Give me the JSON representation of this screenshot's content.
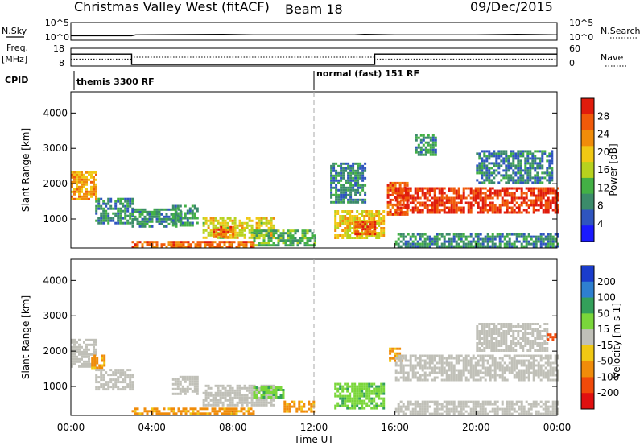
{
  "header": {
    "station": "Christmas Valley West (fitACF)",
    "beam": "Beam 18",
    "date": "09/Dec/2015"
  },
  "noise_panel": {
    "left_label": "N.Sky",
    "right_label": "N.Search",
    "left_ticks": [
      "10^5",
      "10^0"
    ],
    "right_ticks": [
      "10^5",
      "10^0"
    ]
  },
  "freq_panel": {
    "left_label_1": "Freq.",
    "left_label_2": "[MHz]",
    "right_label": "Nave",
    "left_ticks": [
      "18",
      "8"
    ],
    "right_ticks": [
      "60",
      "0"
    ]
  },
  "cpid": {
    "label": "CPID",
    "modes": [
      {
        "name": "themis 3300 RF",
        "start_hour": 0
      },
      {
        "name": "normal (fast) 151 RF",
        "start_hour": 12
      }
    ]
  },
  "time_axis": {
    "title": "Time UT",
    "ticks": [
      "00:00",
      "04:00",
      "08:00",
      "12:00",
      "16:00",
      "20:00",
      "00:00"
    ]
  },
  "colors": {
    "power_scale": [
      "#1a1aff",
      "#2f55bf",
      "#3b8b6a",
      "#43b045",
      "#b7d21e",
      "#f0c814",
      "#f08c0a",
      "#f05a0a",
      "#e01c0c"
    ],
    "velocity_scale": [
      "#1a3ccc",
      "#2e7fd0",
      "#33a05a",
      "#7ad63a",
      "#c0c0b8",
      "#f0c814",
      "#f08c0a",
      "#f04a0a",
      "#e01010"
    ]
  },
  "chart_data": [
    {
      "type": "line",
      "title": "N.Sky / N.Search noise",
      "x_unit": "hours UT",
      "xlim": [
        0,
        24
      ],
      "series": [
        {
          "name": "N.Sky",
          "x": [
            0,
            3,
            3.2,
            7.5,
            9,
            12,
            14,
            14.5,
            16,
            20,
            22,
            24
          ],
          "y": [
            1,
            1,
            2,
            3,
            2,
            2,
            2,
            3,
            2,
            2,
            3,
            2
          ]
        }
      ]
    },
    {
      "type": "line",
      "title": "Freq. [MHz] / Nave",
      "x_unit": "hours UT",
      "xlim": [
        0,
        24
      ],
      "series": [
        {
          "name": "Freq.",
          "x": [
            0,
            3,
            3,
            15,
            15,
            24
          ],
          "y": [
            16,
            16,
            8,
            8,
            16,
            16
          ]
        },
        {
          "name": "Nave",
          "x": [
            0,
            3,
            3,
            15,
            15,
            24
          ],
          "y": [
            22,
            22,
            30,
            30,
            22,
            22
          ]
        }
      ]
    },
    {
      "type": "heatmap",
      "title": "Power [dB]",
      "xlabel": "Time UT",
      "ylabel": "Slant Range [km]",
      "xlim": [
        0,
        24
      ],
      "ylim": [
        180,
        4600
      ],
      "y_ticks": [
        1000,
        2000,
        3000,
        4000
      ],
      "colorbar_label": "Power [dB]",
      "colorbar_ticks": [
        4,
        8,
        12,
        16,
        20,
        24,
        28
      ],
      "colorbar_range": [
        0,
        32
      ],
      "regions": [
        {
          "t": [
            0.0,
            1.2
          ],
          "r": [
            1550,
            2350
          ],
          "value": 22
        },
        {
          "t": [
            1.2,
            3.0
          ],
          "r": [
            900,
            1600
          ],
          "value": 9
        },
        {
          "t": [
            3.0,
            5.5
          ],
          "r": [
            800,
            1300
          ],
          "value": 9
        },
        {
          "t": [
            3.0,
            9.0
          ],
          "r": [
            200,
            380
          ],
          "value": 26
        },
        {
          "t": [
            5.0,
            6.2
          ],
          "r": [
            800,
            1400
          ],
          "value": 10
        },
        {
          "t": [
            6.5,
            10.0
          ],
          "r": [
            500,
            1050
          ],
          "value": 18
        },
        {
          "t": [
            7.0,
            8.0
          ],
          "r": [
            500,
            800
          ],
          "value": 26
        },
        {
          "t": [
            9.0,
            12.0
          ],
          "r": [
            250,
            700
          ],
          "value": 12
        },
        {
          "t": [
            13.0,
            15.5
          ],
          "r": [
            450,
            1250
          ],
          "value": 19
        },
        {
          "t": [
            14.0,
            15.0
          ],
          "r": [
            550,
            950
          ],
          "value": 27
        },
        {
          "t": [
            12.8,
            14.5
          ],
          "r": [
            1500,
            2600
          ],
          "value": 9
        },
        {
          "t": [
            15.6,
            16.6
          ],
          "r": [
            1100,
            2050
          ],
          "value": 27
        },
        {
          "t": [
            16.0,
            24.0
          ],
          "r": [
            1200,
            1900
          ],
          "value": 29
        },
        {
          "t": [
            16.0,
            24.0
          ],
          "r": [
            200,
            600
          ],
          "value": 9
        },
        {
          "t": [
            20.0,
            23.8
          ],
          "r": [
            2000,
            2950
          ],
          "value": 8
        },
        {
          "t": [
            17.0,
            18.0
          ],
          "r": [
            2800,
            3400
          ],
          "value": 10
        }
      ]
    },
    {
      "type": "heatmap",
      "title": "Velocity [m s-1]",
      "xlabel": "Time UT",
      "ylabel": "Slant Range [km]",
      "xlim": [
        0,
        24
      ],
      "ylim": [
        180,
        4600
      ],
      "y_ticks": [
        1000,
        2000,
        3000,
        4000
      ],
      "colorbar_label": "Velocity [m s-1]",
      "colorbar_ticks": [
        200,
        100,
        50,
        15,
        -15,
        -50,
        -100,
        -200
      ],
      "colorbar_range": [
        -250,
        250
      ],
      "regions": [
        {
          "t": [
            0.0,
            1.2
          ],
          "r": [
            1550,
            2350
          ],
          "value": 0
        },
        {
          "t": [
            1.0,
            1.6
          ],
          "r": [
            1500,
            1900
          ],
          "value": -60
        },
        {
          "t": [
            1.2,
            3.0
          ],
          "r": [
            900,
            1500
          ],
          "value": 0
        },
        {
          "t": [
            3.0,
            9.0
          ],
          "r": [
            200,
            400
          ],
          "value": -60
        },
        {
          "t": [
            5.0,
            6.2
          ],
          "r": [
            800,
            1300
          ],
          "value": 0
        },
        {
          "t": [
            6.5,
            10.0
          ],
          "r": [
            500,
            1050
          ],
          "value": 0
        },
        {
          "t": [
            9.0,
            10.5
          ],
          "r": [
            700,
            1000
          ],
          "value": 40
        },
        {
          "t": [
            10.5,
            12.0
          ],
          "r": [
            300,
            600
          ],
          "value": -60
        },
        {
          "t": [
            13.0,
            15.5
          ],
          "r": [
            400,
            1100
          ],
          "value": 40
        },
        {
          "t": [
            15.7,
            16.3
          ],
          "r": [
            1700,
            2100
          ],
          "value": -60
        },
        {
          "t": [
            16.0,
            24.0
          ],
          "r": [
            1200,
            1900
          ],
          "value": 0
        },
        {
          "t": [
            16.0,
            24.0
          ],
          "r": [
            200,
            600
          ],
          "value": 0
        },
        {
          "t": [
            20.0,
            23.5
          ],
          "r": [
            2000,
            2800
          ],
          "value": 0
        },
        {
          "t": [
            23.5,
            23.9
          ],
          "r": [
            2300,
            2500
          ],
          "value": -150
        }
      ]
    }
  ]
}
